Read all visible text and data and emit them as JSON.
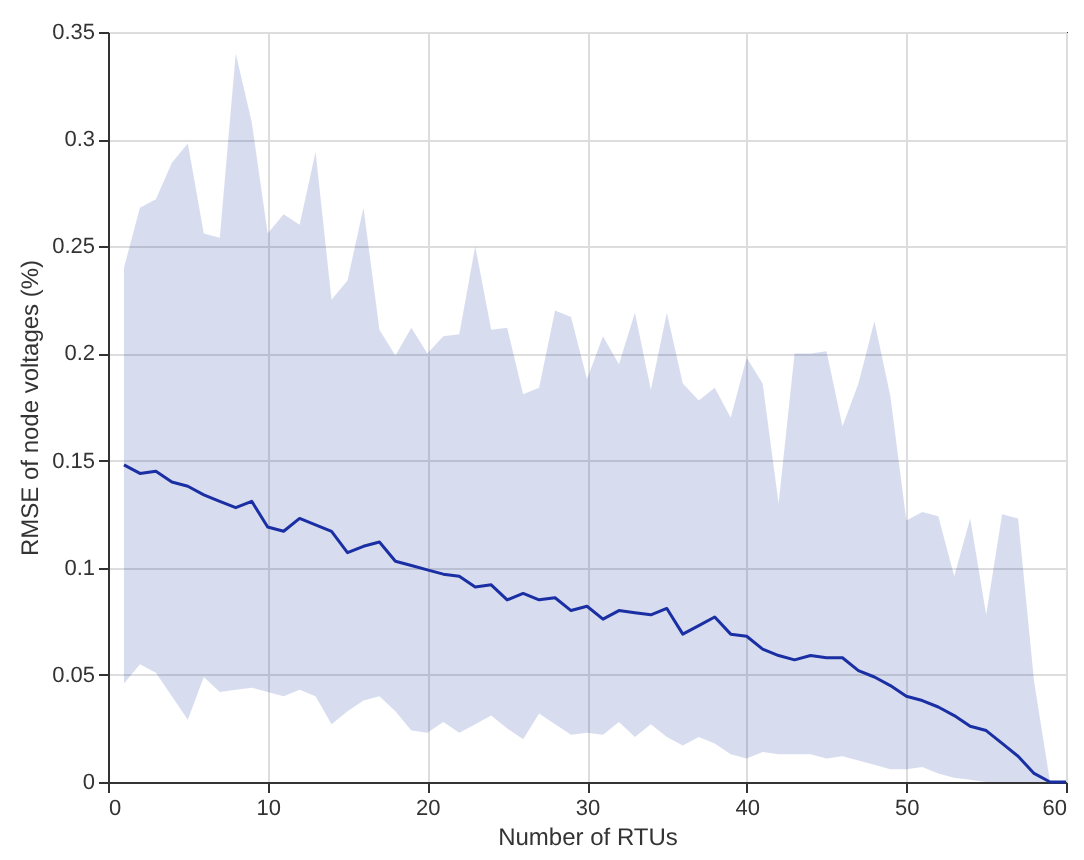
{
  "chart_data": {
    "type": "line",
    "xlabel": "Number of RTUs",
    "ylabel": "RMSE of node voltages (%)",
    "x": [
      1,
      2,
      3,
      4,
      5,
      6,
      7,
      8,
      9,
      10,
      11,
      12,
      13,
      14,
      15,
      16,
      17,
      18,
      19,
      20,
      21,
      22,
      23,
      24,
      25,
      26,
      27,
      28,
      29,
      30,
      31,
      32,
      33,
      34,
      35,
      36,
      37,
      38,
      39,
      40,
      41,
      42,
      43,
      44,
      45,
      46,
      47,
      48,
      49,
      50,
      51,
      52,
      53,
      54,
      55,
      56,
      57,
      58,
      59,
      60
    ],
    "series": [
      {
        "color": "#1a2fa3",
        "values": [
          0.148,
          0.144,
          0.145,
          0.14,
          0.138,
          0.134,
          0.131,
          0.128,
          0.131,
          0.119,
          0.117,
          0.123,
          0.12,
          0.117,
          0.107,
          0.11,
          0.112,
          0.103,
          0.101,
          0.099,
          0.097,
          0.096,
          0.091,
          0.092,
          0.085,
          0.088,
          0.085,
          0.086,
          0.08,
          0.082,
          0.076,
          0.08,
          0.079,
          0.078,
          0.081,
          0.069,
          0.073,
          0.077,
          0.069,
          0.068,
          0.062,
          0.059,
          0.057,
          0.059,
          0.058,
          0.058,
          0.052,
          0.049,
          0.045,
          0.04,
          0.038,
          0.035,
          0.031,
          0.026,
          0.024,
          0.018,
          0.012,
          0.004,
          0.0,
          0.0
        ],
        "lower": [
          0.046,
          0.055,
          0.051,
          0.04,
          0.029,
          0.049,
          0.042,
          0.043,
          0.044,
          0.042,
          0.04,
          0.043,
          0.04,
          0.027,
          0.033,
          0.038,
          0.04,
          0.033,
          0.024,
          0.023,
          0.028,
          0.023,
          0.027,
          0.031,
          0.025,
          0.02,
          0.032,
          0.027,
          0.022,
          0.023,
          0.022,
          0.028,
          0.021,
          0.027,
          0.021,
          0.017,
          0.021,
          0.018,
          0.013,
          0.011,
          0.014,
          0.013,
          0.013,
          0.013,
          0.011,
          0.012,
          0.01,
          0.008,
          0.006,
          0.006,
          0.007,
          0.004,
          0.002,
          0.001,
          0.0,
          0.0,
          0.0,
          0.0,
          0.0,
          0.0
        ],
        "upper": [
          0.24,
          0.268,
          0.272,
          0.289,
          0.298,
          0.256,
          0.254,
          0.34,
          0.308,
          0.256,
          0.265,
          0.26,
          0.294,
          0.225,
          0.234,
          0.268,
          0.211,
          0.199,
          0.212,
          0.2,
          0.208,
          0.209,
          0.25,
          0.211,
          0.212,
          0.181,
          0.184,
          0.22,
          0.217,
          0.188,
          0.208,
          0.195,
          0.219,
          0.183,
          0.219,
          0.186,
          0.178,
          0.184,
          0.17,
          0.198,
          0.186,
          0.13,
          0.2,
          0.2,
          0.201,
          0.166,
          0.186,
          0.215,
          0.18,
          0.122,
          0.126,
          0.124,
          0.096,
          0.123,
          0.078,
          0.125,
          0.123,
          0.047,
          0.0,
          0.0
        ]
      }
    ],
    "xlim": [
      0,
      60
    ],
    "xticks": [
      0,
      10,
      20,
      30,
      40,
      50,
      60
    ],
    "ylim": [
      0,
      0.35
    ],
    "yticks": [
      0,
      0.05,
      0.1,
      0.15,
      0.2,
      0.25,
      0.3,
      0.35
    ],
    "grid": true,
    "marker": "none",
    "line_style": "solid"
  }
}
